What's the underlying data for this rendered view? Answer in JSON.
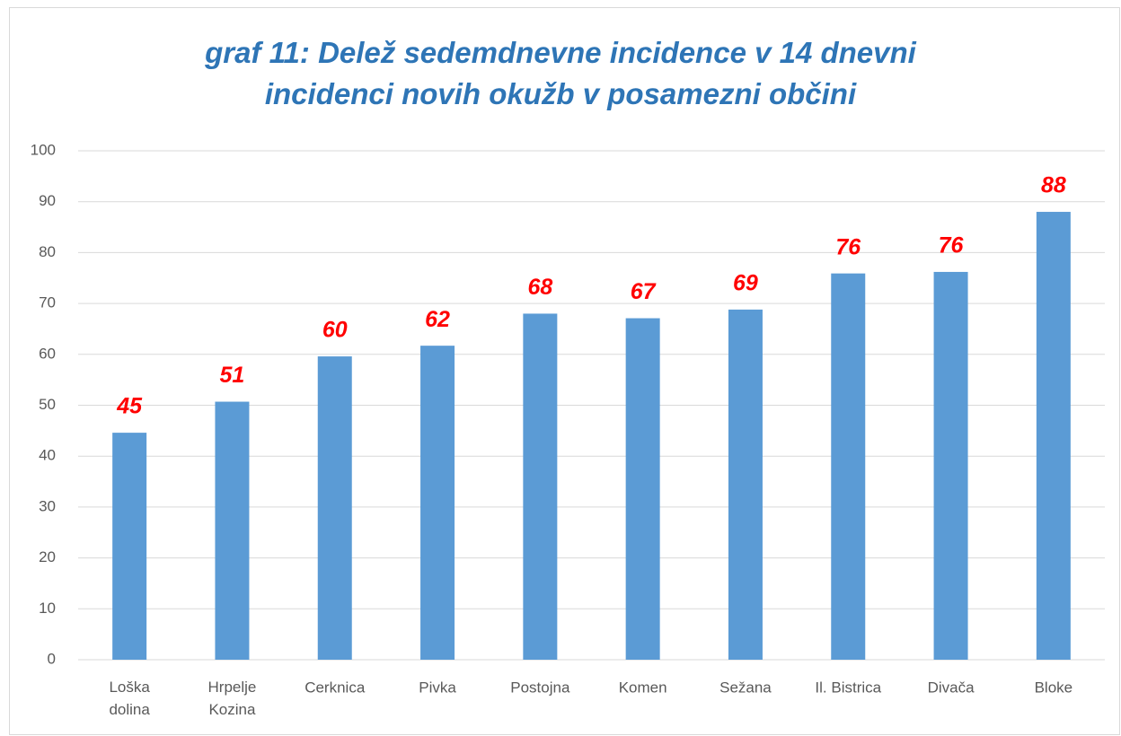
{
  "chart_data": {
    "type": "bar",
    "title": "graf 11: Delež sedemdnevne incidence v 14 dnevni incidenci novih okužb v posamezni občini",
    "categories": [
      "Loška\ndolina",
      "Hrpelje\nKozina",
      "Cerknica",
      "Pivka",
      "Postojna",
      "Komen",
      "Sežana",
      "Il. Bistrica",
      "Divača",
      "Bloke"
    ],
    "values": [
      44.6,
      50.7,
      59.6,
      61.7,
      68.0,
      67.1,
      68.8,
      75.9,
      76.2,
      88.0
    ],
    "value_labels": [
      "45",
      "51",
      "60",
      "62",
      "68",
      "67",
      "69",
      "76",
      "76",
      "88"
    ],
    "color": "#5b9bd5",
    "label_color": "#ff0000",
    "ylim": [
      0,
      100
    ],
    "yticks": [
      0,
      10,
      20,
      30,
      40,
      50,
      60,
      70,
      80,
      90,
      100
    ],
    "grid": true
  }
}
